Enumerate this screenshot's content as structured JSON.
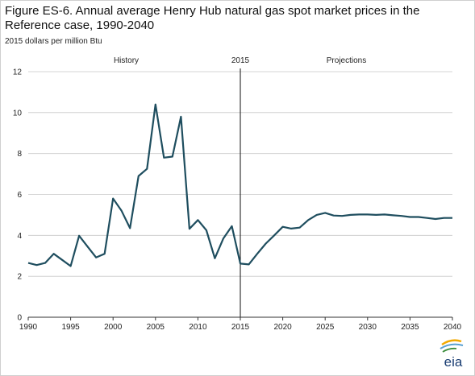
{
  "chart_data": {
    "type": "line",
    "title": "Figure ES-6. Annual average Henry Hub natural gas spot market prices in the Reference case, 1990-2040",
    "ylabel": "2015 dollars per million Btu",
    "xlabel": "",
    "xlim": [
      1990,
      2040
    ],
    "ylim": [
      0,
      12
    ],
    "x_ticks": [
      1990,
      1995,
      2000,
      2005,
      2010,
      2015,
      2020,
      2025,
      2030,
      2035,
      2040
    ],
    "y_ticks": [
      0,
      2,
      4,
      6,
      8,
      10,
      12
    ],
    "grid": "horizontal",
    "color": "#1f4e5f",
    "annotations": {
      "history": "History",
      "divider": "2015",
      "projections": "Projections"
    },
    "divider_x": 2015,
    "series": [
      {
        "x": [
          1990,
          1991,
          1992,
          1993,
          1994,
          1995,
          1996,
          1997,
          1998,
          1999,
          2000,
          2001,
          2002,
          2003,
          2004,
          2005,
          2006,
          2007,
          2008,
          2009,
          2010,
          2011,
          2012,
          2013,
          2014,
          2015,
          2016,
          2017,
          2018,
          2019,
          2020,
          2021,
          2022,
          2023,
          2024,
          2025,
          2026,
          2027,
          2028,
          2029,
          2030,
          2031,
          2032,
          2033,
          2034,
          2035,
          2036,
          2037,
          2038,
          2039,
          2040
        ],
        "values": [
          2.65,
          2.55,
          2.65,
          3.1,
          2.8,
          2.5,
          3.98,
          3.45,
          2.92,
          3.1,
          5.8,
          5.2,
          4.35,
          6.9,
          7.25,
          10.4,
          7.8,
          7.85,
          9.8,
          4.32,
          4.75,
          4.25,
          2.88,
          3.85,
          4.45,
          2.62,
          2.58,
          3.1,
          3.6,
          4.0,
          4.42,
          4.33,
          4.38,
          4.75,
          5.0,
          5.1,
          4.97,
          4.95,
          5.0,
          5.02,
          5.02,
          5.0,
          5.02,
          4.98,
          4.95,
          4.9,
          4.9,
          4.85,
          4.8,
          4.85,
          4.85
        ]
      }
    ]
  },
  "logo": {
    "text": "eia",
    "icon": "eia-logo-icon"
  }
}
